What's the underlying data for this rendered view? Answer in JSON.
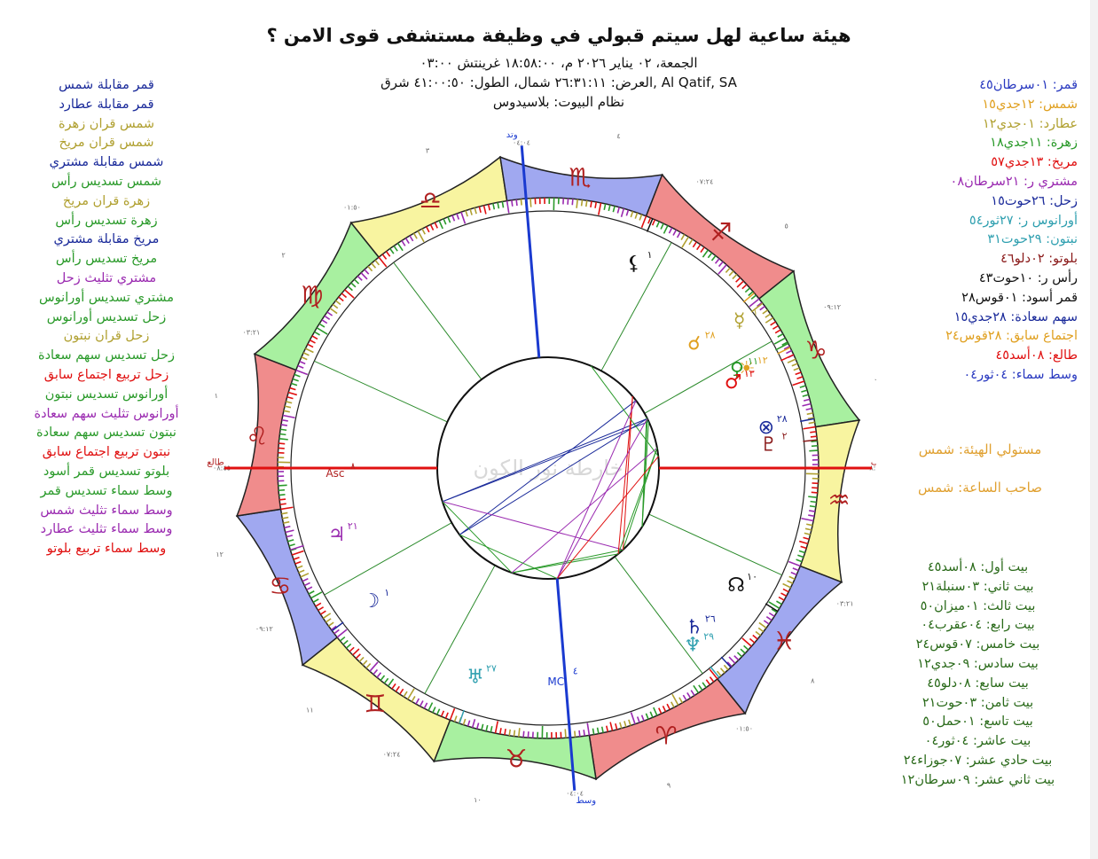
{
  "title": "هيئة ساعية لهل سيتم قبولي في وظيفة مستشفى قوى الامن ؟",
  "subtitle_lines": [
    "الجمعة، ٠٢ يناير ٢٠٢٦ م، ١٨:٥٨:٠٠ غرينتش ٠٣:٠٠",
    "Al Qatif, SA ,العرض: ٢٦:٣١:١١ شمال، الطول: ٤١:٠٠:٥٠ شرق",
    "نظام البيوت: بلاسيدوس"
  ],
  "aspects": [
    {
      "text": "قمر مقابلة شمس",
      "color": "#1a2a9a"
    },
    {
      "text": "قمر مقابلة عطارد",
      "color": "#1a2a9a"
    },
    {
      "text": "شمس قران زهرة",
      "color": "#b0a030"
    },
    {
      "text": "شمس قران مريخ",
      "color": "#b0a030"
    },
    {
      "text": "شمس مقابلة مشتري",
      "color": "#1a2a9a"
    },
    {
      "text": "شمس تسديس رأس",
      "color": "#2a9a2a"
    },
    {
      "text": "زهرة قران مريخ",
      "color": "#b0a030"
    },
    {
      "text": "زهرة تسديس رأس",
      "color": "#2a9a2a"
    },
    {
      "text": "مريخ مقابلة مشتري",
      "color": "#1a2a9a"
    },
    {
      "text": "مريخ تسديس رأس",
      "color": "#2a9a2a"
    },
    {
      "text": "مشتري تثليث زحل",
      "color": "#9a2ab0"
    },
    {
      "text": "مشتري تسديس أورانوس",
      "color": "#2a9a2a"
    },
    {
      "text": "زحل تسديس أورانوس",
      "color": "#2a9a2a"
    },
    {
      "text": "زحل قران نبتون",
      "color": "#b0a030"
    },
    {
      "text": "زحل تسديس سهم سعادة",
      "color": "#2a9a2a"
    },
    {
      "text": "زحل تربيع اجتماع سابق",
      "color": "#e01010"
    },
    {
      "text": "أورانوس تسديس نبتون",
      "color": "#2a9a2a"
    },
    {
      "text": "أورانوس تثليث سهم سعادة",
      "color": "#9a2ab0"
    },
    {
      "text": "نبتون تسديس سهم سعادة",
      "color": "#2a9a2a"
    },
    {
      "text": "نبتون تربيع اجتماع سابق",
      "color": "#e01010"
    },
    {
      "text": "بلوتو تسديس قمر أسود",
      "color": "#2a9a2a"
    },
    {
      "text": "وسط سماء تسديس قمر",
      "color": "#2a9a2a"
    },
    {
      "text": "وسط سماء تثليث شمس",
      "color": "#9a2ab0"
    },
    {
      "text": "وسط سماء تثليث عطارد",
      "color": "#9a2ab0"
    },
    {
      "text": "وسط سماء تربيع بلوتو",
      "color": "#e01010"
    }
  ],
  "positions": [
    {
      "text": "قمر: ٠١سرطان٤٥",
      "color": "#2a3ac0"
    },
    {
      "text": "شمس: ١٢جدي١٥",
      "color": "#e0a020"
    },
    {
      "text": "عطارد: ٠١جدي١٢",
      "color": "#b0a030"
    },
    {
      "text": "زهرة: ١١جدي١٨",
      "color": "#2a9a2a"
    },
    {
      "text": "مريخ: ١٣جدي٥٧",
      "color": "#e01010"
    },
    {
      "text": "مشتري ر: ٢١سرطان٠٨",
      "color": "#9a2ab0"
    },
    {
      "text": "زحل: ٢٦حوت١٥",
      "color": "#1a2a9a"
    },
    {
      "text": "أورانوس ر: ٢٧ثور٥٤",
      "color": "#30a0b0"
    },
    {
      "text": "نبتون: ٢٩حوت٣١",
      "color": "#30a0b0"
    },
    {
      "text": "بلوتو: ٠٢دلو٤٦",
      "color": "#8a1a1a"
    },
    {
      "text": "رأس ر: ١٠حوت٤٣",
      "color": "#111111"
    },
    {
      "text": "قمر أسود: ٠١قوس٢٨",
      "color": "#111111"
    },
    {
      "text": "سهم سعادة: ٢٨جدي١٥",
      "color": "#1a2a9a"
    },
    {
      "text": "اجتماع سابق: ٢٨قوس٢٤",
      "color": "#e0a020"
    },
    {
      "text": "طالع: ٠٨أسد٤٥",
      "color": "#e01010"
    },
    {
      "text": "وسط سماء: ٠٤ثور٠٤",
      "color": "#2a3ac0"
    }
  ],
  "rulers": {
    "chart_ruler": "مستولي الهيئة: شمس",
    "hour_ruler": "صاحب الساعة: شمس"
  },
  "houses": [
    "بيت أول: ٠٨أسد٤٥",
    "بيت ثاني: ٠٣سنبلة٢١",
    "بيت ثالث: ٠١ميزان٥٠",
    "بيت رابع: ٠٤عقرب٠٤",
    "بيت خامس: ٠٧قوس٢٤",
    "بيت سادس: ٠٩جدي١٢",
    "بيت سابع: ٠٨دلو٤٥",
    "بيت ثامن: ٠٣حوت٢١",
    "بيت تاسع: ٠١حمل٥٠",
    "بيت عاشر: ٠٤ثور٠٤",
    "بيت حادي عشر: ٠٧جوزاء٢٤",
    "بيت ثاني عشر: ٠٩سرطان١٢"
  ],
  "houses_color": "#2a6a1a",
  "wheel": {
    "signs": [
      {
        "glyph": "♈",
        "color": "#f08c8c"
      },
      {
        "glyph": "♉",
        "color": "#a8f0a0"
      },
      {
        "glyph": "♊",
        "color": "#f8f4a0"
      },
      {
        "glyph": "♋",
        "color": "#a0a8f0"
      },
      {
        "glyph": "♌",
        "color": "#f08c8c"
      },
      {
        "glyph": "♍",
        "color": "#a8f0a0"
      },
      {
        "glyph": "♎",
        "color": "#f8f4a0"
      },
      {
        "glyph": "♏",
        "color": "#a0a8f0"
      },
      {
        "glyph": "♐",
        "color": "#f08c8c"
      },
      {
        "glyph": "♑",
        "color": "#a8f0a0"
      },
      {
        "glyph": "♒",
        "color": "#f8f4a0"
      },
      {
        "glyph": "♓",
        "color": "#a0a8f0"
      }
    ],
    "axis_labels": {
      "asc": "طالع",
      "dsc": "غارب",
      "mc": "وسط",
      "ic": "وتد"
    },
    "asc_mark": "Asc",
    "asc_degree": "٨",
    "mc_mark": "MC",
    "mc_degree": "٤",
    "watermark": "خارطة نور الكون",
    "planets": [
      {
        "name": "moon",
        "glyph": "☽",
        "degree": "١",
        "color": "#1a2a9a",
        "lon": 91.75
      },
      {
        "name": "sun",
        "glyph": "☀",
        "degree": "١٢",
        "color": "#e0a020",
        "lon": 282.25
      },
      {
        "name": "mercury",
        "glyph": "☿",
        "degree": "١",
        "color": "#b0a030",
        "lon": 271.2
      },
      {
        "name": "venus",
        "glyph": "♀",
        "degree": "١١",
        "color": "#2a9a2a",
        "lon": 281.3
      },
      {
        "name": "mars",
        "glyph": "♂",
        "degree": "١٣",
        "color": "#e01010",
        "lon": 283.95
      },
      {
        "name": "jupiter",
        "glyph": "♃",
        "degree": "٢١",
        "color": "#9a2ab0",
        "lon": 111.13
      },
      {
        "name": "saturn",
        "glyph": "♄",
        "degree": "٢٦",
        "color": "#1a2a9a",
        "lon": 356.25
      },
      {
        "name": "uranus",
        "glyph": "♅",
        "degree": "٢٧",
        "color": "#30a0b0",
        "lon": 57.9
      },
      {
        "name": "neptune",
        "glyph": "♆",
        "degree": "٢٩",
        "color": "#30a0b0",
        "lon": 359.52
      },
      {
        "name": "pluto",
        "glyph": "♇",
        "degree": "٢",
        "color": "#8a1a1a",
        "lon": 302.77
      },
      {
        "name": "north-node",
        "glyph": "☊",
        "degree": "١٠",
        "color": "#111111",
        "lon": 340.72
      },
      {
        "name": "lilith",
        "glyph": "⚸",
        "degree": "١",
        "color": "#111111",
        "lon": 241.47
      },
      {
        "name": "part-of-fortune",
        "glyph": "⊗",
        "degree": "٢٨",
        "color": "#1a2a9a",
        "lon": 298.25
      },
      {
        "name": "prenatal-syzygy",
        "glyph": "☌",
        "degree": "٢٨",
        "color": "#e0a020",
        "lon": 268.4
      }
    ],
    "house_cusps": [
      128.75,
      153.35,
      181.83,
      214.07,
      247.4,
      279.2,
      308.75,
      333.35,
      1.83,
      34.07,
      67.4,
      99.2
    ],
    "cusp_labels": [
      "٠٨:٤٥",
      "٠٣:٢١",
      "٠١:٥٠",
      "٠٤:٠٤",
      "٠٧:٢٤",
      "٠٩:١٢",
      "٠٨:٤٥",
      "٠٣:٢١",
      "٠١:٥٠",
      "٠٤:٠٤",
      "٠٧:٢٤",
      "٠٩:١٢"
    ],
    "house_numbers": [
      "١",
      "٢",
      "٣",
      "٤",
      "٥",
      "٦",
      "٧",
      "٨",
      "٩",
      "١٠",
      "١١",
      "١٢"
    ],
    "aspect_colors": {
      "opposition": "#1a2a9a",
      "trine": "#9a2ab0",
      "sextile": "#2a9a2a",
      "square": "#e01010",
      "conjunction": "#b0a030"
    },
    "axis_colors": {
      "asc_dsc": "#e01010",
      "mc_ic": "#1a3ad0"
    }
  }
}
